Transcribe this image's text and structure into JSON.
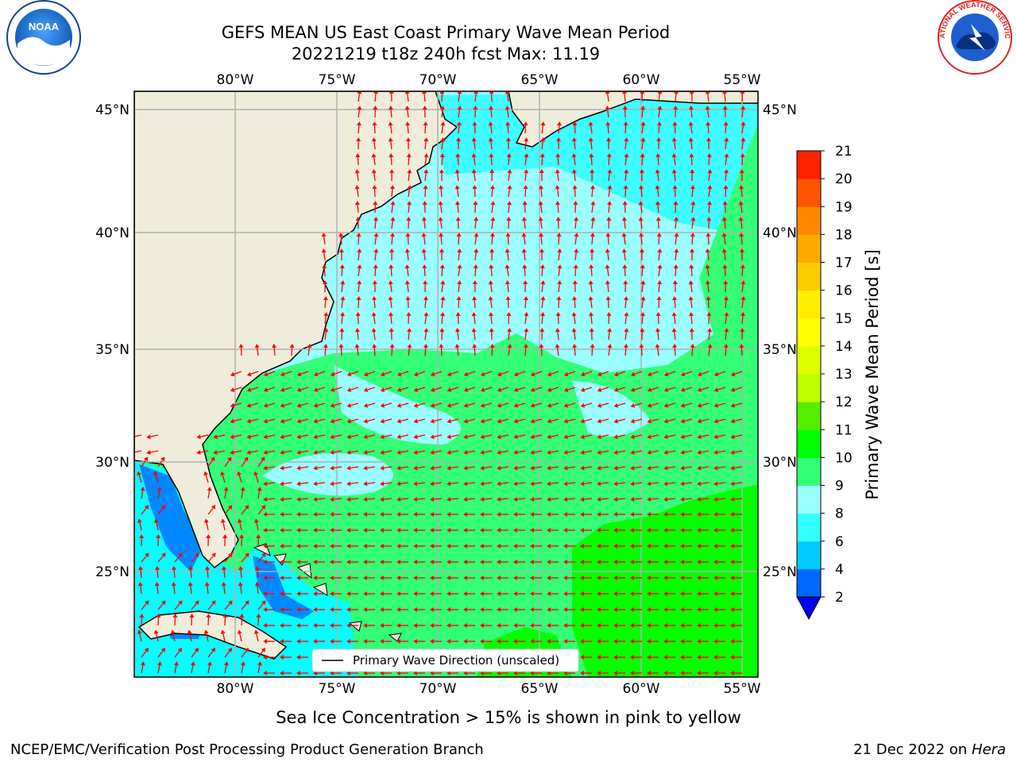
{
  "title_line1": "GEFS MEAN US East Coast Primary Wave Mean Period",
  "title_line2": "20221219 t18z 240h fcst   Max: 11.19",
  "logos": {
    "left": "NOAA",
    "right": "NATIONAL WEATHER SERVICE"
  },
  "map": {
    "lon_labels": [
      "80°W",
      "75°W",
      "70°W",
      "65°W",
      "60°W",
      "55°W"
    ],
    "lat_labels": [
      "45°N",
      "40°N",
      "35°N",
      "30°N",
      "25°N"
    ],
    "lon_range": [
      -85,
      -54
    ],
    "lat_range": [
      20.5,
      46
    ],
    "land_color": "#efedda",
    "arrow_color": "#ff0000",
    "legend_label": "Primary Wave Direction (unscaled)"
  },
  "colorbar": {
    "label": "Primary Wave Mean Period [s]",
    "ticks": [
      "2",
      "4",
      "6",
      "8",
      "9",
      "10",
      "11",
      "12",
      "13",
      "14",
      "15",
      "16",
      "17",
      "18",
      "19",
      "20",
      "21"
    ],
    "colors": [
      "#0066ff",
      "#00ccff",
      "#33ffff",
      "#99ffff",
      "#33ff77",
      "#00ff00",
      "#55ee00",
      "#bbff00",
      "#ddff00",
      "#ffff00",
      "#ffee00",
      "#ffcc00",
      "#ffaa00",
      "#ff8800",
      "#ff5500",
      "#ff2200"
    ],
    "extend_color": "#0000ee"
  },
  "notes": {
    "ice": "Sea Ice Concentration > 15% is shown in pink to yellow"
  },
  "footer": {
    "left": "NCEP/EMC/Verification Post Processing Product Generation Branch",
    "right_date": "21 Dec 2022 on",
    "right_host": "Hera"
  }
}
